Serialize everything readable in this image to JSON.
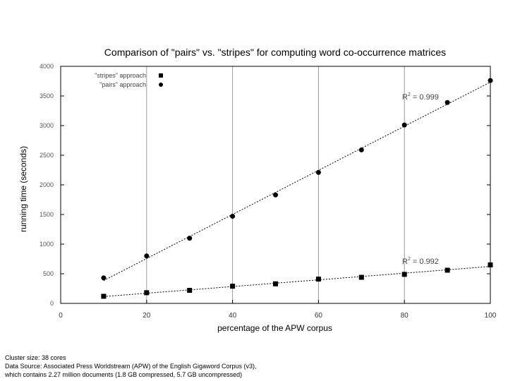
{
  "chart_data": {
    "type": "scatter",
    "title": "Comparison of \"pairs\" vs. \"stripes\" for computing word co-occurrence matrices",
    "xlabel": "percentage of the APW corpus",
    "ylabel": "running time (seconds)",
    "xlim": [
      0,
      100
    ],
    "ylim": [
      0,
      4000
    ],
    "x_ticks": [
      "0",
      "20",
      "40",
      "60",
      "80",
      "100"
    ],
    "y_ticks": [
      "0",
      "500",
      "1000",
      "1500",
      "2000",
      "2500",
      "3000",
      "3500",
      "4000"
    ],
    "grid": "vertical",
    "legend_placement": "top-left",
    "series": [
      {
        "name": "\"stripes\" approach",
        "marker": "square",
        "x": [
          10,
          20,
          30,
          40,
          50,
          60,
          70,
          80,
          90,
          100
        ],
        "values": [
          120,
          180,
          220,
          290,
          330,
          410,
          440,
          490,
          560,
          650
        ],
        "fit_label": "R² = 0.992"
      },
      {
        "name": "\"pairs\" approach",
        "marker": "circle",
        "x": [
          10,
          20,
          30,
          40,
          50,
          60,
          70,
          80,
          90,
          100
        ],
        "values": [
          430,
          800,
          1100,
          1470,
          1830,
          2210,
          2590,
          3010,
          3390,
          3760
        ],
        "fit_label": "R² = 0.999"
      }
    ]
  },
  "footnote": {
    "line1": "Cluster size: 38 cores",
    "line2": "Data Source: Associated Press Worldstream (APW) of the English Gigaword Corpus (v3),",
    "line3": "which contains 2.27 million documents (1.8 GB compressed, 5.7 GB uncompressed)"
  }
}
